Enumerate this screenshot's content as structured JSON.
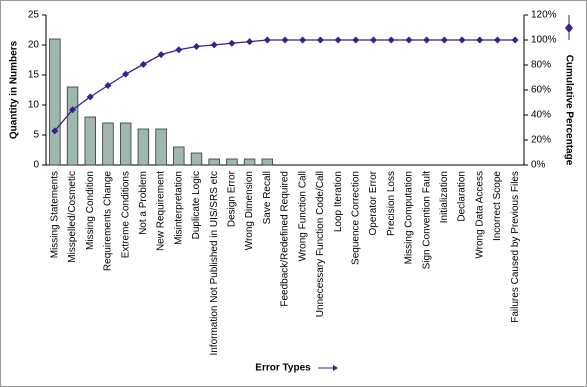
{
  "chart_data": {
    "type": "bar",
    "categories": [
      "Missing Statements",
      "Misspelled/Cosmetic",
      "Missing Condition",
      "Requirements Change",
      "Extreme Conditions",
      "Not a Problem",
      "New Requirement",
      "Misinterpretation",
      "Duplicate Logic",
      "Information Not Published in UIS/SRS etc",
      "Design Error",
      "Wrong Dimension",
      "Save Recall",
      "Feedback/Redefined Required",
      "Wrong Function Call",
      "Unnecessary Function Code/Call",
      "Loop Iteration",
      "Sequence Correction",
      "Operator Error",
      "Precision Loss",
      "Missing Computation",
      "Sign Convention Fault",
      "Initialization",
      "Declaration",
      "Wrong Data Access",
      "Incorrect Scope",
      "Failures Caused by Previous Files"
    ],
    "series": [
      {
        "type": "bar",
        "color": "#9fb8ad",
        "values": [
          21,
          13,
          8,
          7,
          7,
          6,
          6,
          3,
          2,
          1,
          1,
          1,
          1,
          0,
          0,
          0,
          0,
          0,
          0,
          0,
          0,
          0,
          0,
          0,
          0,
          0,
          0
        ]
      },
      {
        "type": "line",
        "axis": "y2",
        "color": "#3b1f8f",
        "values": [
          27.3,
          44.2,
          54.5,
          63.6,
          72.7,
          80.5,
          88.3,
          92.2,
          94.8,
          96.1,
          97.4,
          98.7,
          100,
          100,
          100,
          100,
          100,
          100,
          100,
          100,
          100,
          100,
          100,
          100,
          100,
          100,
          100
        ]
      }
    ],
    "ylabel": "Quantity in Numbers",
    "y2label": "Cumulative Percentage",
    "xlabel": "Error Types",
    "ylim": [
      0,
      25
    ],
    "yticks": [
      0,
      5,
      10,
      15,
      20,
      25
    ],
    "y2lim": [
      0,
      120
    ],
    "y2ticks": [
      {
        "value": 0,
        "label": "0%"
      },
      {
        "value": 20,
        "label": "20%"
      },
      {
        "value": 40,
        "label": "40%"
      },
      {
        "value": 60,
        "label": "60%"
      },
      {
        "value": 80,
        "label": "80%"
      },
      {
        "value": 100,
        "label": "100%"
      },
      {
        "value": 120,
        "label": "120%"
      }
    ]
  }
}
